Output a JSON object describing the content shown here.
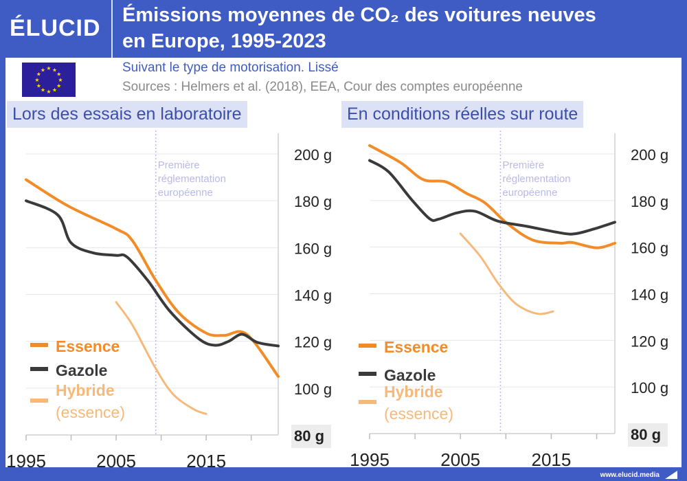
{
  "header": {
    "logo": "ÉLUCID",
    "title_line1": "Émissions moyennes de CO₂ des voitures neuves",
    "title_line2": "en Europe, 1995-2023",
    "subtitle": "Suivant le type de motorisation. Lissé",
    "sources": "Sources : Helmers et al. (2018), EEA, Cour des comptes européenne"
  },
  "footer": {
    "url": "www.elucid.media"
  },
  "colors": {
    "frame": "#3f5bc4",
    "essence": "#f28c28",
    "gazole": "#3a3a3a",
    "hybride": "#f6b97a",
    "annotation": "#b9b9ea"
  },
  "annotation": {
    "year": 2009.4,
    "text": [
      "Première",
      "réglementation",
      "européenne"
    ]
  },
  "chart_data": [
    {
      "type": "line",
      "title": "Lors des essais en laboratoire",
      "xlim": [
        1995,
        2023
      ],
      "ylim": [
        80,
        200
      ],
      "xticks": [
        1995,
        2000,
        2005,
        2010,
        2015,
        2020
      ],
      "xtick_labels": [
        "1995",
        "2005",
        "2015"
      ],
      "ytick_labels": [
        "200 g",
        "180 g",
        "160 g",
        "140 g",
        "120 g",
        "100 g",
        "80 g"
      ],
      "yticks": [
        200,
        180,
        160,
        140,
        120,
        100,
        80
      ],
      "grid": true,
      "legend": "bottom-left",
      "series": [
        {
          "name": "Essence",
          "key": "essence",
          "x": [
            1995,
            1999.7,
            2005,
            2006.8,
            2009.4,
            2012,
            2015,
            2017,
            2019.5,
            2023
          ],
          "y": [
            189,
            177.7,
            168,
            163,
            146,
            132,
            123.5,
            122.5,
            123,
            105
          ]
        },
        {
          "name": "Gazole",
          "key": "gazole",
          "x": [
            1995,
            1998.5,
            2000,
            2002.5,
            2005,
            2006.2,
            2008.5,
            2011,
            2014.2,
            2016,
            2017.5,
            2019,
            2020.7,
            2023
          ],
          "y": [
            180,
            174,
            162,
            157.7,
            156.7,
            156,
            146,
            132.7,
            121,
            118.3,
            120,
            123,
            119.5,
            118
          ]
        },
        {
          "name": "Hybride (essence)",
          "name_line1": "Hybride",
          "name_line2": "(essence)",
          "key": "hybride",
          "x": [
            2005,
            2006.8,
            2009.3,
            2011.3,
            2013.6,
            2015
          ],
          "y": [
            136.7,
            127,
            109,
            97.5,
            91,
            89
          ]
        }
      ]
    },
    {
      "type": "line",
      "title": "En conditions réelles sur route",
      "xlim": [
        1995,
        2022
      ],
      "ylim": [
        80,
        200
      ],
      "xticks": [
        1995,
        2000,
        2005,
        2010,
        2015,
        2020
      ],
      "xtick_labels": [
        "1995",
        "2005",
        "2015"
      ],
      "ytick_labels": [
        "200 g",
        "180 g",
        "160 g",
        "140 g",
        "120 g",
        "100 g",
        "80 g"
      ],
      "yticks": [
        200,
        180,
        160,
        140,
        120,
        100,
        80
      ],
      "grid": true,
      "legend": "bottom-left",
      "series": [
        {
          "name": "Essence",
          "key": "essence",
          "x": [
            1995,
            1998.4,
            2000.9,
            2003.4,
            2005.7,
            2007.7,
            2010.2,
            2013,
            2016,
            2017.3,
            2020,
            2022
          ],
          "y": [
            203.6,
            196.3,
            189,
            188,
            183,
            179,
            170,
            163,
            161.7,
            162,
            159.7,
            161.7
          ]
        },
        {
          "name": "Gazole",
          "key": "gazole",
          "x": [
            1995,
            1997.1,
            1999.6,
            2001.6,
            2002.6,
            2004.6,
            2006.6,
            2009.1,
            2012.2,
            2016.2,
            2017.7,
            2019.7,
            2022
          ],
          "y": [
            197.2,
            192.3,
            180.5,
            172.2,
            172,
            174.7,
            175.4,
            171.2,
            169,
            166,
            165.8,
            167.8,
            170.7
          ]
        },
        {
          "name": "Hybride (essence)",
          "name_line1": "Hybride",
          "name_line2": "(essence)",
          "key": "hybride",
          "x": [
            2005,
            2007.2,
            2009.2,
            2011.2,
            2013.5,
            2015.2
          ],
          "y": [
            165.8,
            156,
            144.2,
            135.4,
            131.4,
            132.4
          ]
        }
      ]
    }
  ]
}
